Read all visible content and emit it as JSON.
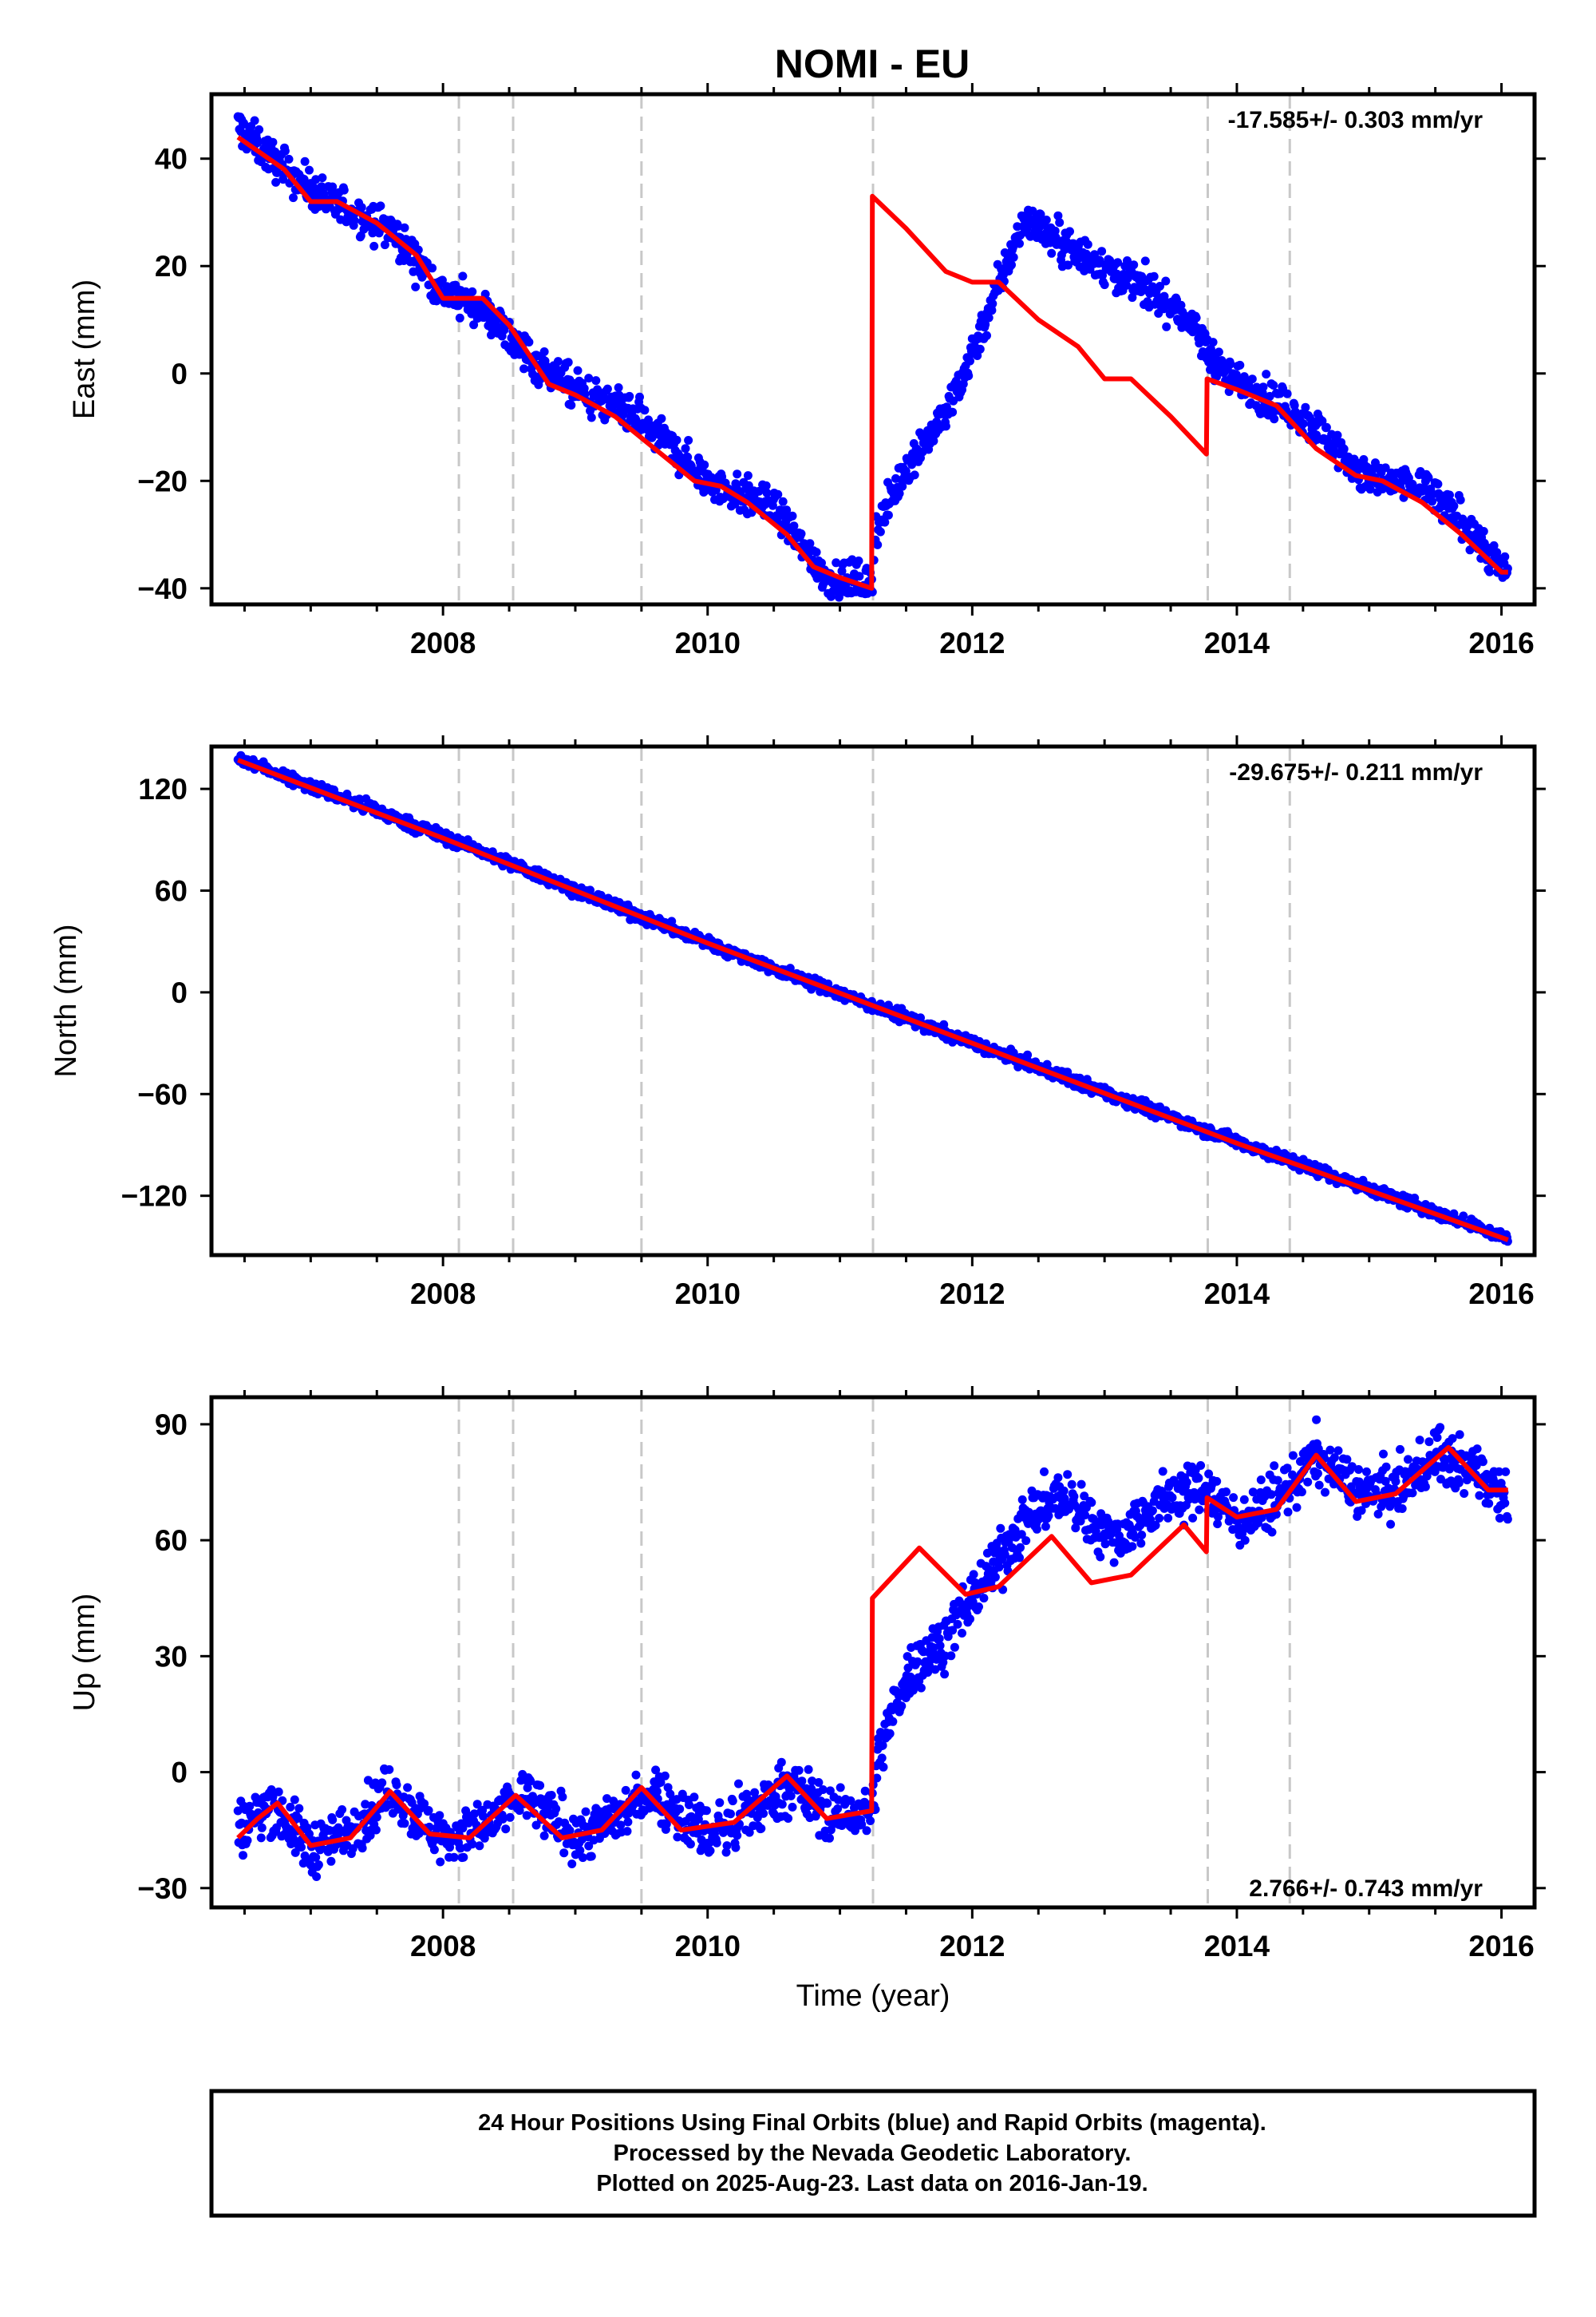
{
  "title": "NOMI - EU",
  "footer": {
    "line1": "24 Hour Positions Using Final Orbits (blue) and Rapid Orbits (magenta).",
    "line2": "Processed by the Nevada Geodetic Laboratory.",
    "line3": "Plotted on 2025-Aug-23. Last data on 2016-Jan-19."
  },
  "colors": {
    "data_points": "#0000ff",
    "model_line": "#ff0000",
    "event_lines": "#c8c8c8",
    "frame": "#000000"
  },
  "chart_data": [
    {
      "type": "scatter",
      "component": "East",
      "ylabel": "East (mm)",
      "xlabel": "",
      "rate_label": "-17.585+/- 0.303 mm/yr",
      "rate_position": "top-right",
      "xlim": [
        2006.25,
        2016.25
      ],
      "ylim": [
        -43,
        52
      ],
      "xticks": [
        2008,
        2010,
        2012,
        2014,
        2016
      ],
      "yticks": [
        -40,
        -20,
        0,
        20,
        40
      ],
      "ytick_labels": [
        "−40",
        "−20",
        "0",
        "20",
        "40"
      ],
      "event_lines_x": [
        2008.12,
        2008.53,
        2009.5,
        2011.25,
        2013.78,
        2014.4
      ],
      "observed_trend": {
        "x": [
          2006.45,
          2006.8,
          2007.2,
          2007.6,
          2008.0,
          2008.3,
          2008.7,
          2009.0,
          2009.5,
          2010.0,
          2010.5,
          2010.9,
          2011.24,
          2011.27,
          2011.5,
          2011.8,
          2012.1,
          2012.4,
          2012.7,
          2013.0,
          2013.3,
          2013.6,
          2013.9,
          2014.2,
          2014.6,
          2015.0,
          2015.4,
          2015.8,
          2016.05
        ],
        "y": [
          46,
          38,
          31,
          27,
          15,
          12,
          2,
          -3,
          -9,
          -20,
          -25,
          -38,
          -39,
          -30,
          -17,
          -8,
          10,
          29,
          24,
          20,
          16,
          11,
          0,
          -4,
          -10,
          -20,
          -21,
          -30,
          -38
        ]
      },
      "observed_spread": 2.5,
      "model": {
        "x": [
          2006.45,
          2006.8,
          2007.0,
          2007.2,
          2007.5,
          2007.8,
          2008.0,
          2008.3,
          2008.5,
          2008.8,
          2009.0,
          2009.3,
          2009.6,
          2009.9,
          2010.1,
          2010.3,
          2010.6,
          2010.8,
          2011.0,
          2011.24,
          2011.245,
          2011.5,
          2011.8,
          2012.0,
          2012.2,
          2012.5,
          2012.8,
          2013.0,
          2013.2,
          2013.5,
          2013.77,
          2013.775,
          2014.0,
          2014.3,
          2014.6,
          2014.9,
          2015.1,
          2015.4,
          2015.7,
          2016.0,
          2016.05
        ],
        "y": [
          44,
          38,
          32,
          32,
          28,
          22,
          14,
          14,
          9,
          -2,
          -4,
          -8,
          -14,
          -20,
          -21,
          -24,
          -30,
          -36,
          -38,
          -40,
          33,
          27,
          19,
          17,
          17,
          10,
          5,
          -1,
          -1,
          -8,
          -15,
          -1,
          -3,
          -6,
          -14,
          -19,
          -20,
          -24,
          -30,
          -37,
          -37
        ]
      }
    },
    {
      "type": "scatter",
      "component": "North",
      "ylabel": "North (mm)",
      "xlabel": "",
      "rate_label": "-29.675+/- 0.211 mm/yr",
      "rate_position": "top-right",
      "xlim": [
        2006.25,
        2016.25
      ],
      "ylim": [
        -155,
        145
      ],
      "xticks": [
        2008,
        2010,
        2012,
        2014,
        2016
      ],
      "yticks": [
        -120,
        -60,
        0,
        60,
        120
      ],
      "ytick_labels": [
        "−120",
        "−60",
        "0",
        "60",
        "120"
      ],
      "event_lines_x": [
        2008.12,
        2008.53,
        2009.5,
        2011.25,
        2013.78,
        2014.4
      ],
      "observed_trend": {
        "x": [
          2006.45,
          2008.0,
          2010.0,
          2012.0,
          2014.0,
          2016.05
        ],
        "y": [
          138,
          92,
          29,
          -30,
          -88,
          -145
        ]
      },
      "observed_spread": 2.5,
      "model": {
        "x": [
          2006.45,
          2008.0,
          2010.0,
          2012.0,
          2014.0,
          2016.05
        ],
        "y": [
          137,
          91,
          29,
          -30,
          -89,
          -146
        ]
      }
    },
    {
      "type": "scatter",
      "component": "Up",
      "ylabel": "Up (mm)",
      "xlabel": "Time (year)",
      "rate_label": "2.766+/- 0.743 mm/yr",
      "rate_position": "bottom-right",
      "xlim": [
        2006.25,
        2016.25
      ],
      "ylim": [
        -35,
        97
      ],
      "xticks": [
        2008,
        2010,
        2012,
        2014,
        2016
      ],
      "yticks": [
        -30,
        0,
        30,
        60,
        90
      ],
      "ytick_labels": [
        "−30",
        "0",
        "30",
        "60",
        "90"
      ],
      "event_lines_x": [
        2008.12,
        2008.53,
        2009.5,
        2011.25,
        2013.78,
        2014.4
      ],
      "observed_trend": {
        "x": [
          2006.45,
          2006.7,
          2007.0,
          2007.3,
          2007.6,
          2008.0,
          2008.3,
          2008.6,
          2009.0,
          2009.3,
          2009.6,
          2010.0,
          2010.3,
          2010.6,
          2011.0,
          2011.24,
          2011.3,
          2011.5,
          2011.8,
          2012.1,
          2012.4,
          2012.65,
          2012.9,
          2013.1,
          2013.4,
          2013.77,
          2014.0,
          2014.3,
          2014.6,
          2014.9,
          2015.2,
          2015.5,
          2015.8,
          2016.05
        ],
        "y": [
          -15,
          -8,
          -20,
          -15,
          -5,
          -17,
          -15,
          -6,
          -17,
          -12,
          -5,
          -16,
          -12,
          -3,
          -12,
          -10,
          5,
          25,
          35,
          50,
          65,
          72,
          65,
          60,
          70,
          74,
          65,
          70,
          82,
          73,
          72,
          82,
          78,
          72
        ]
      },
      "observed_spread": 5,
      "model": {
        "x": [
          2006.45,
          2006.6,
          2006.75,
          2007.0,
          2007.3,
          2007.6,
          2007.9,
          2008.2,
          2008.55,
          2008.9,
          2009.2,
          2009.5,
          2009.8,
          2010.2,
          2010.6,
          2010.9,
          2011.24,
          2011.245,
          2011.6,
          2011.95,
          2012.2,
          2012.6,
          2012.9,
          2013.2,
          2013.6,
          2013.77,
          2013.775,
          2014.0,
          2014.3,
          2014.6,
          2014.9,
          2015.2,
          2015.6,
          2015.9,
          2016.05
        ],
        "y": [
          -17,
          -12,
          -8,
          -19,
          -17,
          -5,
          -16,
          -17,
          -6,
          -17,
          -15,
          -4,
          -15,
          -13,
          -1,
          -12,
          -10,
          45,
          58,
          46,
          48,
          61,
          49,
          51,
          64,
          57,
          71,
          66,
          68,
          82,
          70,
          72,
          84,
          73,
          73
        ]
      }
    }
  ]
}
